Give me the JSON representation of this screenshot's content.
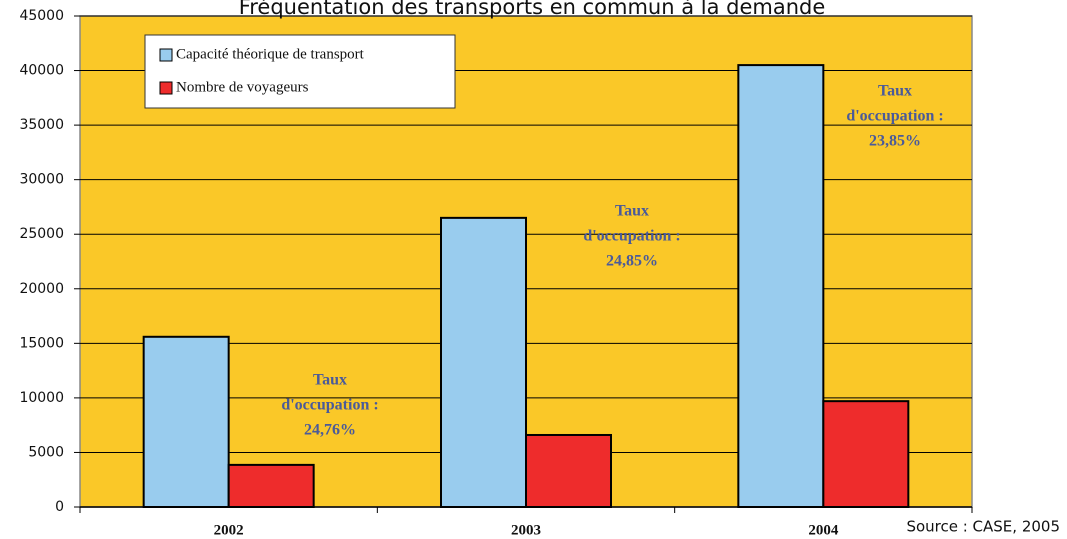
{
  "chart_data": {
    "type": "bar",
    "title": "Fréquentation des transports en commun à la demande",
    "categories": [
      "2002",
      "2003",
      "2004"
    ],
    "series": [
      {
        "name": "Capacité théorique de transport",
        "color": "#99ccee",
        "values": [
          15600,
          26500,
          40500
        ]
      },
      {
        "name": "Nombre de voyageurs",
        "color": "#ee2c2c",
        "values": [
          3860,
          6600,
          9700
        ]
      }
    ],
    "ylim": [
      0,
      45000
    ],
    "yticks": [
      0,
      5000,
      10000,
      15000,
      20000,
      25000,
      30000,
      35000,
      40000,
      45000
    ],
    "grid": true,
    "annotations": [
      [
        "Taux",
        "d'occupation :",
        "24,76%"
      ],
      [
        "Taux",
        "d'occupation :",
        "24,85%"
      ],
      [
        "Taux",
        "d'occupation :",
        "23,85%"
      ]
    ],
    "source": "Source : CASE, 2005"
  }
}
